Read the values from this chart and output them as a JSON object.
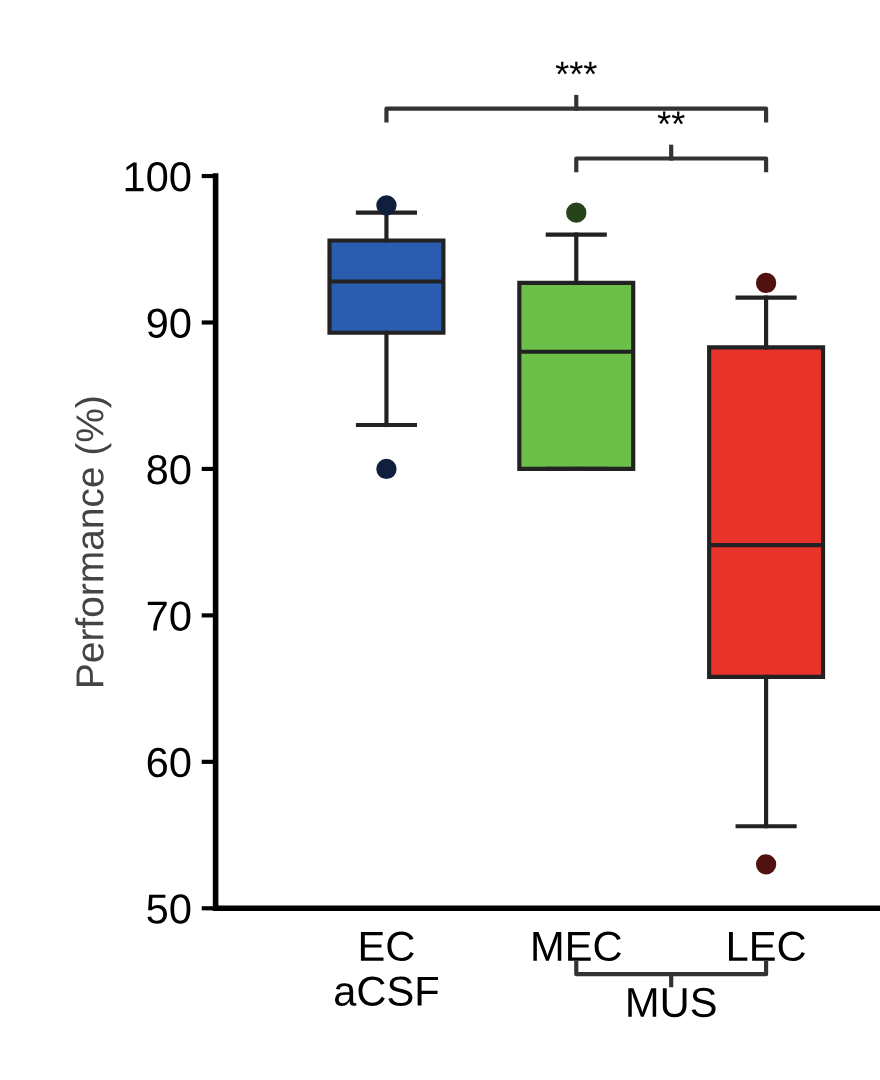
{
  "chart_data": {
    "type": "box",
    "ylabel": "Performance (%)",
    "categories": [
      "EC\naCSF",
      "MEC",
      "LEC"
    ],
    "colors": [
      "#2a5cb0",
      "#6cc04a",
      "#e8332a"
    ],
    "boxes": [
      {
        "low": 83,
        "q1": 89.3,
        "median": 92.8,
        "q3": 95.6,
        "high": 97.5,
        "outliers": [
          80,
          98
        ]
      },
      {
        "low": 80,
        "q1": 80,
        "median": 88,
        "q3": 92.7,
        "high": 96,
        "outliers": [
          97.5
        ]
      },
      {
        "low": 55.6,
        "q1": 65.8,
        "median": 74.8,
        "q3": 88.3,
        "high": 91.7,
        "outliers": [
          92.7,
          53
        ]
      }
    ],
    "ylim": [
      50,
      100
    ],
    "yticks": [
      50,
      60,
      70,
      80,
      90,
      100
    ],
    "grid": false,
    "annotations": [
      "***",
      "**",
      "MUS"
    ]
  }
}
